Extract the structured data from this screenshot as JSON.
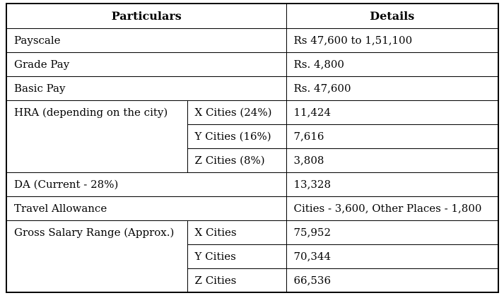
{
  "table": {
    "header": {
      "particulars": "Particulars",
      "details": "Details"
    },
    "rows": [
      {
        "label": "Payscale",
        "detail": "Rs 47,600 to 1,51,100"
      },
      {
        "label": "Grade Pay",
        "detail": "Rs. 4,800"
      },
      {
        "label": "Basic Pay",
        "detail": "Rs. 47,600"
      },
      {
        "label": "HRA (depending on the city)",
        "sub": [
          {
            "name": "X Cities (24%)",
            "detail": "11,424"
          },
          {
            "name": "Y Cities (16%)",
            "detail": "7,616"
          },
          {
            "name": "Z Cities (8%)",
            "detail": "3,808"
          }
        ]
      },
      {
        "label": "DA (Current - 28%)",
        "detail": "13,328"
      },
      {
        "label": "Travel Allowance",
        "detail": "Cities - 3,600, Other Places - 1,800"
      },
      {
        "label": "Gross Salary Range (Approx.)",
        "sub": [
          {
            "name": "X Cities",
            "detail": "75,952"
          },
          {
            "name": "Y Cities",
            "detail": "70,344"
          },
          {
            "name": "Z Cities",
            "detail": "66,536"
          }
        ]
      }
    ],
    "colors": {
      "border": "#000000",
      "text": "#000000",
      "background": "#ffffff"
    }
  }
}
